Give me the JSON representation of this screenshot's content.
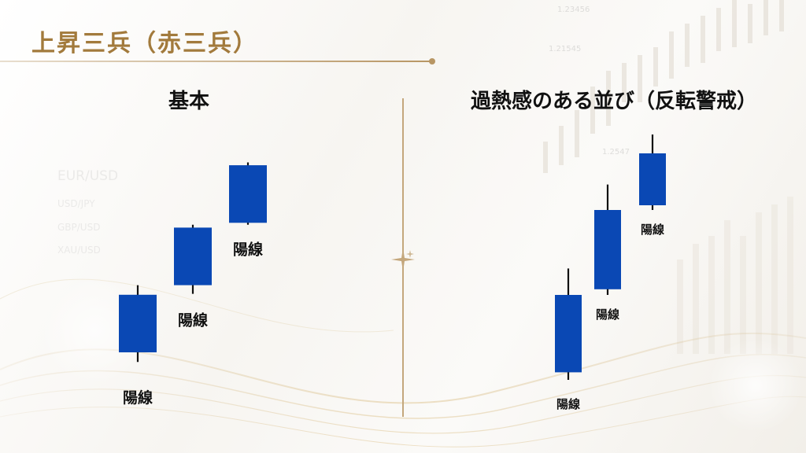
{
  "title": "上昇三兵（赤三兵）",
  "panels": {
    "left": {
      "heading": "基本"
    },
    "right": {
      "heading": "過熱感のある並び（反転警戒）"
    }
  },
  "background": {
    "watermark": [
      "EUR/USD",
      "USD/JPY",
      "GBP/USD",
      "XAU/USD"
    ],
    "tickers": [
      "1.23456",
      "1.21545",
      "1.2547"
    ]
  },
  "colors": {
    "candle_fill": "#0a48b4",
    "wick": "#111111",
    "accent_gold": "#b89664",
    "title_text": "#a27a3c"
  },
  "chart_data": [
    {
      "type": "candlestick",
      "panel": "left",
      "series": [
        {
          "label": "陽線",
          "open": 40,
          "close": 46,
          "high": 47,
          "low": 39
        },
        {
          "label": "陽線",
          "open": 47,
          "close": 53,
          "high": 53.3,
          "low": 46.1
        },
        {
          "label": "陽線",
          "open": 53.5,
          "close": 59.5,
          "high": 59.8,
          "low": 53.3
        }
      ]
    },
    {
      "type": "candlestick",
      "panel": "right",
      "series": [
        {
          "label": "陽線",
          "open": 40.8,
          "close": 49,
          "high": 51.8,
          "low": 40
        },
        {
          "label": "陽線",
          "open": 49.6,
          "close": 58,
          "high": 60.7,
          "low": 49
        },
        {
          "label": "陽線",
          "open": 58.5,
          "close": 64,
          "high": 66,
          "low": 58
        }
      ]
    }
  ]
}
